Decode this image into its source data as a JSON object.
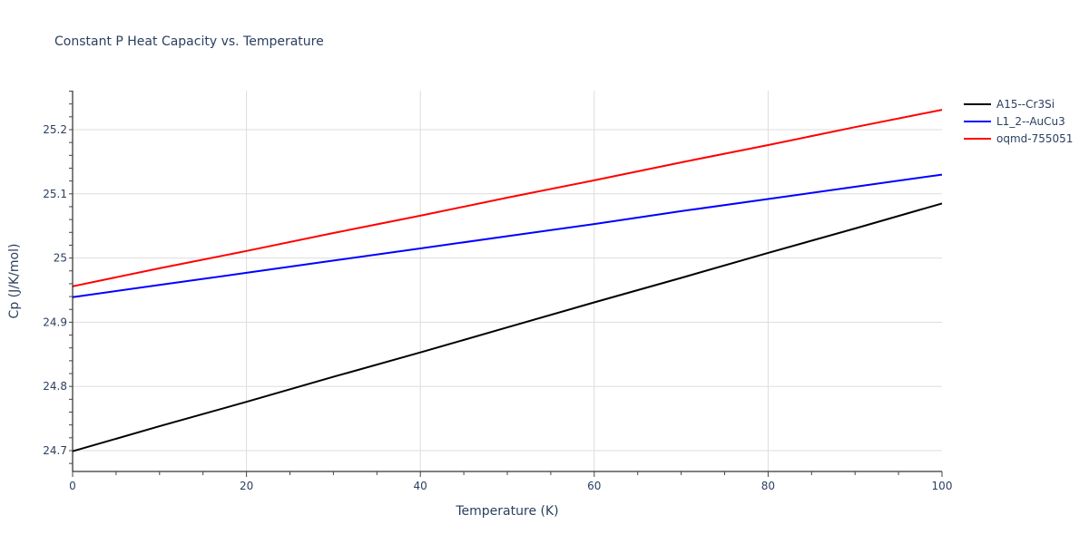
{
  "chart_data": {
    "type": "line",
    "title": "Constant P Heat Capacity vs. Temperature",
    "xlabel": "Temperature (K)",
    "ylabel": "Cp (J/K/mol)",
    "xlim": [
      0,
      100
    ],
    "ylim": [
      24.67,
      25.26
    ],
    "x_ticks": [
      0,
      20,
      40,
      60,
      80,
      100
    ],
    "y_ticks": [
      24.7,
      24.8,
      24.9,
      25,
      25.1,
      25.2
    ],
    "y_tick_labels": [
      "24.7",
      "24.8",
      "24.9",
      "25",
      "25.1",
      "25.2"
    ],
    "grid": true,
    "legend_position": "top-right-outside",
    "x": [
      0,
      10,
      20,
      30,
      40,
      50,
      60,
      70,
      80,
      90,
      100
    ],
    "series": [
      {
        "name": "A15--Cr3Si",
        "color": "#000000",
        "values": [
          24.699,
          24.738,
          24.776,
          24.815,
          24.853,
          24.892,
          24.931,
          24.969,
          25.008,
          25.046,
          25.085
        ]
      },
      {
        "name": "L1_2--AuCu3",
        "color": "#0000ff",
        "values": [
          24.939,
          24.958,
          24.977,
          24.996,
          25.015,
          25.034,
          25.053,
          25.073,
          25.092,
          25.111,
          25.13
        ]
      },
      {
        "name": "oqmd-755051",
        "color": "#ff0000",
        "values": [
          24.956,
          24.984,
          25.011,
          25.039,
          25.066,
          25.094,
          25.121,
          25.149,
          25.176,
          25.204,
          25.231
        ]
      }
    ]
  }
}
